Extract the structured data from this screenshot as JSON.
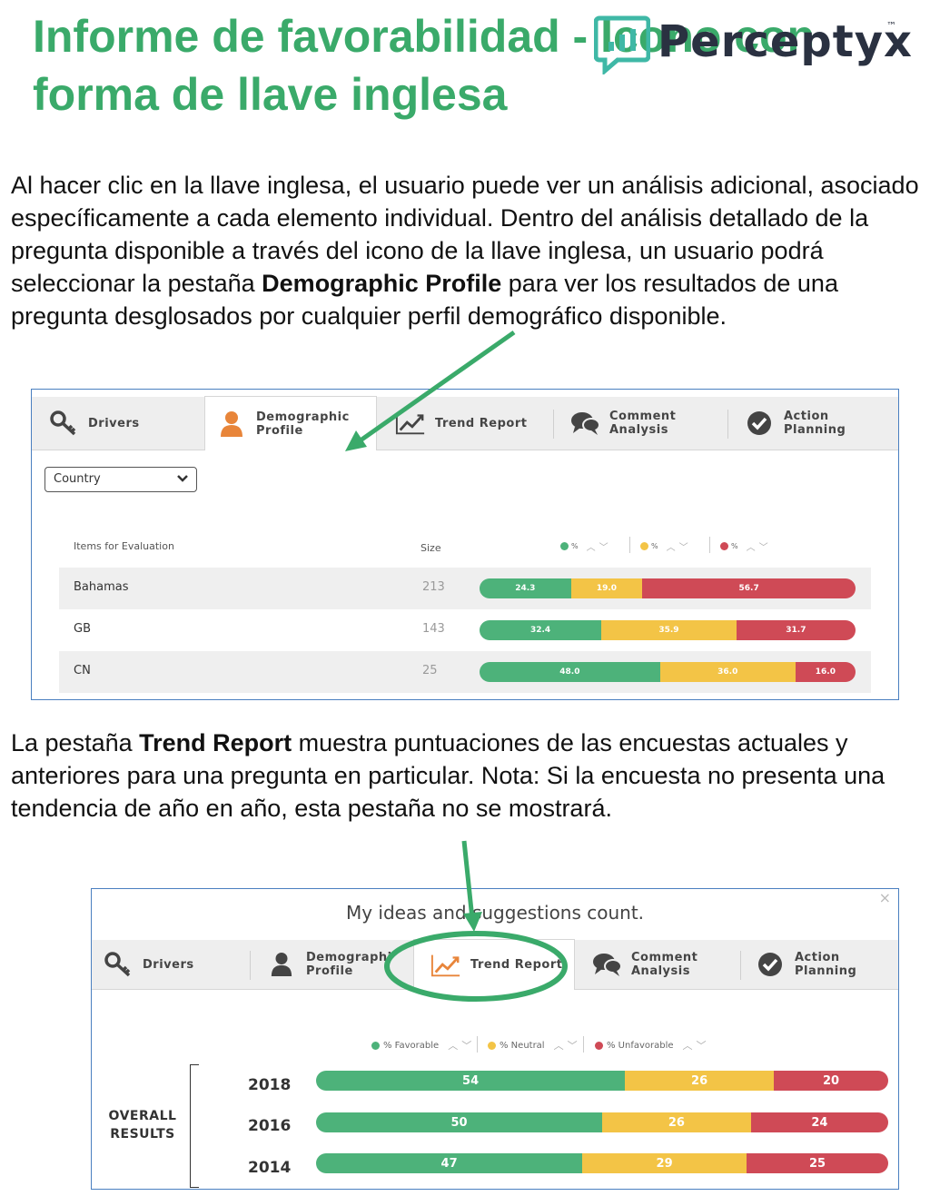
{
  "slide": {
    "title": "Informe de favorabilidad - Icono con forma de llave inglesa",
    "logo_text": "Perceptyx",
    "logo_tm": "™",
    "paragraph1": {
      "before": "Al hacer clic en la llave inglesa, el usuario puede ver un análisis adicional, asociado específicamente a cada elemento individual. Dentro del análisis detallado de la pregunta disponible a través del icono de la llave inglesa, un usuario podrá seleccionar la pestaña ",
      "bold": "Demographic Profile",
      "after": " para ver los resultados de una pregunta desglosados por cualquier perfil demográfico disponible."
    },
    "paragraph2": {
      "before": "La pestaña ",
      "bold": "Trend Report",
      "after": "  muestra puntuaciones de las encuestas actuales y anteriores para una pregunta en particular. Nota: Si la encuesta no presenta una tendencia de año en año, esta pestaña no se mostrará."
    },
    "colors": {
      "title": "#3aaa6a",
      "arrow": "#3aaa6a",
      "favorable": "#4db27a",
      "neutral": "#f3c446",
      "unfavorable": "#cf4a56",
      "active_tab_icon": "#e8853a"
    }
  },
  "panel1": {
    "tabs": [
      {
        "label": "Drivers",
        "icon": "wrench-key-icon"
      },
      {
        "label_line1": "Demographic",
        "label_line2": "Profile",
        "icon": "person-icon",
        "active": true
      },
      {
        "label": "Trend Report",
        "icon": "trend-chart-icon"
      },
      {
        "label_line1": "Comment",
        "label_line2": "Analysis",
        "icon": "speech-bubbles-icon"
      },
      {
        "label_line1": "Action",
        "label_line2": "Planning",
        "icon": "checkmark-circle-icon"
      }
    ],
    "dropdown_value": "Country",
    "col_items": "Items for Evaluation",
    "col_size": "Size",
    "legend_pct": "%",
    "rows": [
      {
        "label": "Bahamas",
        "size": "213",
        "fav": 24.3,
        "neu": 19.0,
        "unf": 56.7,
        "fav_text": "24.3",
        "neu_text": "19.0",
        "unf_text": "56.7"
      },
      {
        "label": "GB",
        "size": "143",
        "fav": 32.4,
        "neu": 35.9,
        "unf": 31.7,
        "fav_text": "32.4",
        "neu_text": "35.9",
        "unf_text": "31.7"
      },
      {
        "label": "CN",
        "size": "25",
        "fav": 48.0,
        "neu": 36.0,
        "unf": 16.0,
        "fav_text": "48.0",
        "neu_text": "36.0",
        "unf_text": "16.0"
      }
    ]
  },
  "panel2": {
    "title": "My ideas and suggestions count.",
    "close": "×",
    "tabs": [
      {
        "label": "Drivers"
      },
      {
        "label_line1": "Demographi",
        "label_line2": "Profile"
      },
      {
        "label": "Trend Report",
        "active": true
      },
      {
        "label_line1": "Comment",
        "label_line2": "Analysis"
      },
      {
        "label_line1": "Action",
        "label_line2": "Planning"
      }
    ],
    "legend": {
      "favorable": "% Favorable",
      "neutral": "% Neutral",
      "unfavorable": "% Unfavorable"
    },
    "overall_line1": "OVERALL",
    "overall_line2": "RESULTS",
    "years": [
      {
        "year": "2018",
        "fav": 54,
        "neu": 26,
        "unf": 20,
        "fav_text": "54",
        "neu_text": "26",
        "unf_text": "20"
      },
      {
        "year": "2016",
        "fav": 50,
        "neu": 26,
        "unf": 24,
        "fav_text": "50",
        "neu_text": "26",
        "unf_text": "24"
      },
      {
        "year": "2014",
        "fav": 47,
        "neu": 29,
        "unf": 25,
        "fav_text": "47",
        "neu_text": "29",
        "unf_text": "25"
      }
    ]
  }
}
